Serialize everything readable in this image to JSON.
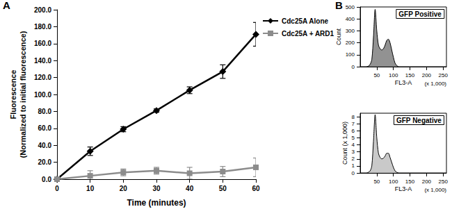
{
  "chart_data": [
    {
      "type": "line",
      "panel": "A",
      "x_label": "Time (minutes)",
      "y_label": "Fluorescence\n(Normalized to initial fluorescence)",
      "x": [
        0,
        10,
        20,
        30,
        40,
        50,
        60
      ],
      "xlim": [
        0,
        60
      ],
      "xticks": [
        0,
        10,
        20,
        30,
        40,
        50,
        60
      ],
      "ylim": [
        0,
        200
      ],
      "yticks": [
        {
          "value": 0,
          "label": "0.0"
        },
        {
          "value": 20,
          "label": "20.0"
        },
        {
          "value": 40,
          "label": "40.0"
        },
        {
          "value": 60,
          "label": "60.0"
        },
        {
          "value": 80,
          "label": "80.0"
        },
        {
          "value": 100,
          "label": "100.0"
        },
        {
          "value": 120,
          "label": "120.0"
        },
        {
          "value": 140,
          "label": "140.0"
        },
        {
          "value": 160,
          "label": "160.0"
        },
        {
          "value": 180,
          "label": "180.0"
        },
        {
          "value": 200,
          "label": "200.0"
        }
      ],
      "grid": false,
      "legend": "right",
      "series": [
        {
          "name": "Cdc25A Alone",
          "color": "#000000",
          "marker": "diamond",
          "line_style": "solid",
          "values": [
            0,
            33,
            59,
            81,
            105,
            127,
            171
          ],
          "errors": [
            0,
            5,
            3,
            2,
            4,
            8,
            14
          ]
        },
        {
          "name": "Cdc25A + ARD1",
          "color": "#8c8c8c",
          "marker": "square",
          "line_style": "solid",
          "values": [
            0,
            4,
            8,
            10,
            7,
            9,
            14
          ],
          "errors": [
            0,
            6,
            4,
            4,
            7,
            6,
            11
          ]
        }
      ]
    },
    {
      "type": "area",
      "panel": "B",
      "title": "GFP Positive",
      "x_label": "FL3-A",
      "y_label": "Count",
      "annotations": [
        "(x 1,000)"
      ],
      "x": [
        20,
        25,
        30,
        35,
        40,
        45,
        50,
        55,
        60,
        65,
        70,
        75,
        80,
        85,
        90,
        95,
        100,
        105,
        110,
        115
      ],
      "values": [
        0,
        5,
        20,
        60,
        250,
        480,
        300,
        180,
        150,
        140,
        150,
        180,
        220,
        230,
        200,
        140,
        80,
        30,
        10,
        0
      ],
      "color": "#777777",
      "xlim": [
        0,
        260
      ],
      "xticks": [
        50,
        100,
        150,
        200,
        250
      ],
      "ylim": [
        0,
        500
      ],
      "yticks": [
        0,
        100,
        200,
        300,
        400,
        500
      ]
    },
    {
      "type": "area",
      "title": "GFP Negative",
      "x_label": "FL3-A",
      "y_label": "Count (x 1,000)",
      "annotations": [
        "(x 1,000)"
      ],
      "x": [
        20,
        25,
        30,
        35,
        40,
        45,
        50,
        55,
        60,
        65,
        70,
        75,
        80,
        85,
        90,
        95,
        100,
        105,
        110,
        115
      ],
      "values": [
        0,
        0.1,
        0.3,
        1,
        4.5,
        8.3,
        5,
        2.8,
        2.2,
        2,
        2.1,
        2.4,
        2.8,
        2.8,
        2.2,
        1.5,
        0.8,
        0.3,
        0.1,
        0
      ],
      "color": "#bbbbbb",
      "xlim": [
        0,
        260
      ],
      "xticks": [
        50,
        100,
        150,
        200,
        250
      ],
      "ylim": [
        0,
        8.5
      ],
      "yticks": [
        0,
        1,
        2,
        3,
        4,
        5,
        6,
        7,
        8
      ]
    }
  ]
}
